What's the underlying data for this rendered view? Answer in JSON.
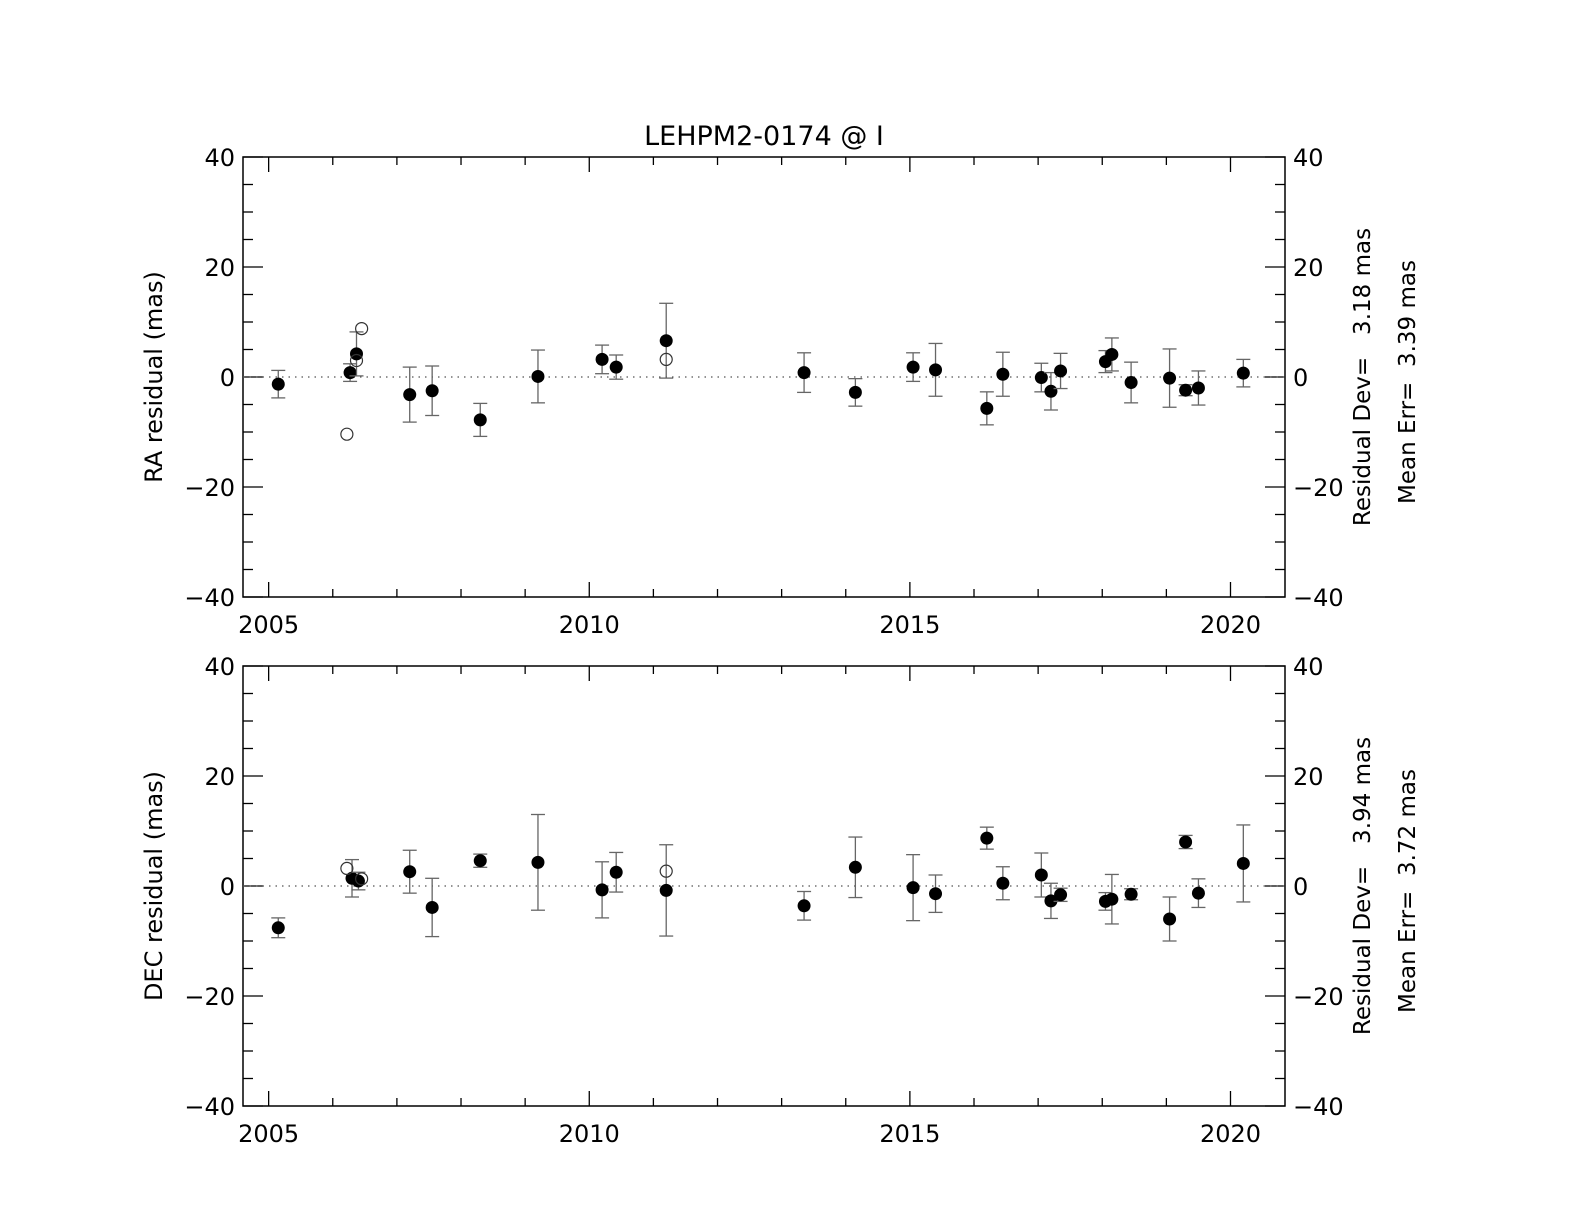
{
  "title": "LEHPM2-0174 @ I",
  "chart_data": [
    {
      "type": "scatter",
      "ylabel": "RA residual (mas)",
      "xlim": [
        2004.6,
        2020.85
      ],
      "ylim": [
        -40,
        40
      ],
      "x_ticks": [
        "2005",
        "2010",
        "2015",
        "2020"
      ],
      "y_ticks": [
        "40",
        "20",
        "0",
        "−20",
        "−40"
      ],
      "annotations": [
        "Residual Dev=   3.18 mas",
        "Mean Err=  3.39 mas"
      ],
      "series": [
        {
          "marker": "filled-circle",
          "points": [
            {
              "x": 2005.15,
              "y": -1.3,
              "err": 2.5
            },
            {
              "x": 2006.27,
              "y": 0.8,
              "err": 1.6
            },
            {
              "x": 2006.37,
              "y": 4.2,
              "err": 4.0
            },
            {
              "x": 2007.2,
              "y": -3.2,
              "err": 5.0
            },
            {
              "x": 2007.55,
              "y": -2.5,
              "err": 4.5
            },
            {
              "x": 2008.3,
              "y": -7.8,
              "err": 3.0
            },
            {
              "x": 2009.2,
              "y": 0.1,
              "err": 4.8
            },
            {
              "x": 2010.2,
              "y": 3.2,
              "err": 2.6
            },
            {
              "x": 2010.42,
              "y": 1.8,
              "err": 2.2
            },
            {
              "x": 2011.2,
              "y": 6.6,
              "err": 6.8
            },
            {
              "x": 2013.35,
              "y": 0.8,
              "err": 3.6
            },
            {
              "x": 2014.15,
              "y": -2.8,
              "err": 2.5
            },
            {
              "x": 2015.05,
              "y": 1.8,
              "err": 2.6
            },
            {
              "x": 2015.4,
              "y": 1.3,
              "err": 4.8
            },
            {
              "x": 2016.2,
              "y": -5.7,
              "err": 3.0
            },
            {
              "x": 2016.45,
              "y": 0.5,
              "err": 4.0
            },
            {
              "x": 2017.05,
              "y": -0.1,
              "err": 2.6
            },
            {
              "x": 2017.2,
              "y": -2.6,
              "err": 3.4
            },
            {
              "x": 2017.35,
              "y": 1.1,
              "err": 3.2
            },
            {
              "x": 2018.05,
              "y": 2.8,
              "err": 2.0
            },
            {
              "x": 2018.15,
              "y": 4.1,
              "err": 3.0
            },
            {
              "x": 2018.45,
              "y": -1.0,
              "err": 3.7
            },
            {
              "x": 2019.05,
              "y": -0.2,
              "err": 5.3
            },
            {
              "x": 2019.3,
              "y": -2.4,
              "err": 1.0
            },
            {
              "x": 2019.5,
              "y": -2.0,
              "err": 3.1
            },
            {
              "x": 2020.2,
              "y": 0.7,
              "err": 2.5
            }
          ]
        },
        {
          "marker": "open-circle",
          "points": [
            {
              "x": 2006.22,
              "y": -10.4
            },
            {
              "x": 2006.37,
              "y": 3.0
            },
            {
              "x": 2006.45,
              "y": 8.8
            },
            {
              "x": 2011.2,
              "y": 3.2
            }
          ]
        }
      ]
    },
    {
      "type": "scatter",
      "ylabel": "DEC residual (mas)",
      "xlim": [
        2004.6,
        2020.85
      ],
      "ylim": [
        -40,
        40
      ],
      "x_ticks": [
        "2005",
        "2010",
        "2015",
        "2020"
      ],
      "y_ticks": [
        "40",
        "20",
        "0",
        "−20",
        "−40"
      ],
      "annotations": [
        "Residual Dev=   3.94 mas",
        "Mean Err=  3.72 mas"
      ],
      "series": [
        {
          "marker": "filled-circle",
          "points": [
            {
              "x": 2005.15,
              "y": -7.6,
              "err": 1.8
            },
            {
              "x": 2006.3,
              "y": 1.4,
              "err": 3.4
            },
            {
              "x": 2006.4,
              "y": 0.9,
              "err": 1.6
            },
            {
              "x": 2007.2,
              "y": 2.6,
              "err": 3.9
            },
            {
              "x": 2007.55,
              "y": -3.9,
              "err": 5.3
            },
            {
              "x": 2008.3,
              "y": 4.6,
              "err": 1.2
            },
            {
              "x": 2009.2,
              "y": 4.3,
              "err": 8.7
            },
            {
              "x": 2010.2,
              "y": -0.7,
              "err": 5.1
            },
            {
              "x": 2010.42,
              "y": 2.5,
              "err": 3.6
            },
            {
              "x": 2011.2,
              "y": -0.8,
              "err": 8.3
            },
            {
              "x": 2013.35,
              "y": -3.6,
              "err": 2.6
            },
            {
              "x": 2014.15,
              "y": 3.4,
              "err": 5.5
            },
            {
              "x": 2015.05,
              "y": -0.3,
              "err": 6.0
            },
            {
              "x": 2015.4,
              "y": -1.4,
              "err": 3.4
            },
            {
              "x": 2016.2,
              "y": 8.7,
              "err": 2.0
            },
            {
              "x": 2016.45,
              "y": 0.5,
              "err": 3.0
            },
            {
              "x": 2017.05,
              "y": 2.0,
              "err": 4.0
            },
            {
              "x": 2017.2,
              "y": -2.7,
              "err": 3.2
            },
            {
              "x": 2017.35,
              "y": -1.6,
              "err": 1.2
            },
            {
              "x": 2018.05,
              "y": -2.8,
              "err": 1.6
            },
            {
              "x": 2018.15,
              "y": -2.4,
              "err": 4.5
            },
            {
              "x": 2018.45,
              "y": -1.5,
              "err": 1.0
            },
            {
              "x": 2019.05,
              "y": -6.0,
              "err": 4.0
            },
            {
              "x": 2019.3,
              "y": 8.0,
              "err": 1.2
            },
            {
              "x": 2019.5,
              "y": -1.3,
              "err": 2.6
            },
            {
              "x": 2020.2,
              "y": 4.1,
              "err": 7.0
            }
          ]
        },
        {
          "marker": "open-circle",
          "points": [
            {
              "x": 2006.22,
              "y": 3.2
            },
            {
              "x": 2006.45,
              "y": 1.3
            },
            {
              "x": 2011.2,
              "y": 2.7
            }
          ]
        }
      ]
    }
  ]
}
